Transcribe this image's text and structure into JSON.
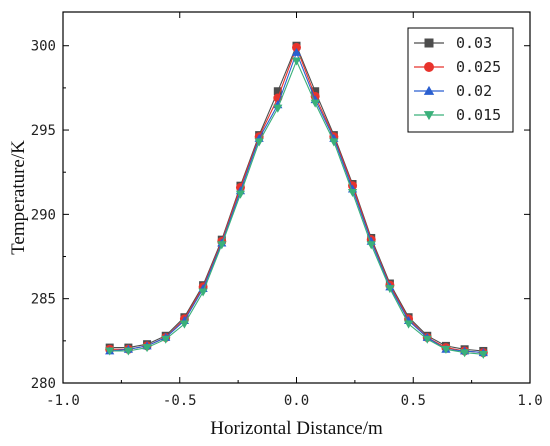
{
  "chart_data": {
    "type": "line",
    "xlabel": "Horizontal Distance/m",
    "ylabel": "Temperature/K",
    "xlim": [
      -1.0,
      1.0
    ],
    "ylim": [
      280,
      302
    ],
    "xticks": [
      -1.0,
      -0.5,
      0.0,
      0.5,
      1.0
    ],
    "xtick_labels": [
      "-1.0",
      "-0.5",
      "0.0",
      "0.5",
      "1.0"
    ],
    "yticks": [
      280,
      285,
      290,
      295,
      300
    ],
    "ytick_labels": [
      "280",
      "285",
      "290",
      "295",
      "300"
    ],
    "grid": false,
    "legend_position": "top-right",
    "x": [
      -0.8,
      -0.72,
      -0.64,
      -0.56,
      -0.48,
      -0.4,
      -0.32,
      -0.24,
      -0.16,
      -0.08,
      0.0,
      0.08,
      0.16,
      0.24,
      0.32,
      0.4,
      0.48,
      0.56,
      0.64,
      0.72,
      0.8
    ],
    "series": [
      {
        "name": "0.03",
        "color": "#4d4d4d",
        "marker": "square",
        "values": [
          282.1,
          282.1,
          282.3,
          282.8,
          283.9,
          285.8,
          288.5,
          291.7,
          294.7,
          297.3,
          300.0,
          297.3,
          294.7,
          291.8,
          288.6,
          285.9,
          283.9,
          282.8,
          282.2,
          282.0,
          281.9
        ]
      },
      {
        "name": "0.025",
        "color": "#e8332c",
        "marker": "circle",
        "values": [
          282.0,
          282.0,
          282.2,
          282.7,
          283.8,
          285.7,
          288.4,
          291.6,
          294.6,
          296.9,
          299.9,
          297.0,
          294.6,
          291.7,
          288.5,
          285.8,
          283.8,
          282.7,
          282.1,
          281.9,
          281.8
        ]
      },
      {
        "name": "0.02",
        "color": "#2a5fd0",
        "marker": "triangle-up",
        "values": [
          281.9,
          282.0,
          282.2,
          282.7,
          283.7,
          285.6,
          288.3,
          291.4,
          294.5,
          296.5,
          299.6,
          296.8,
          294.5,
          291.5,
          288.4,
          285.7,
          283.7,
          282.7,
          282.0,
          281.9,
          281.8
        ]
      },
      {
        "name": "0.015",
        "color": "#3ab07a",
        "marker": "triangle-down",
        "values": [
          281.9,
          281.9,
          282.1,
          282.6,
          283.5,
          285.4,
          288.2,
          291.2,
          294.3,
          296.3,
          299.1,
          296.6,
          294.3,
          291.3,
          288.2,
          285.6,
          283.5,
          282.6,
          282.0,
          281.8,
          281.7
        ]
      }
    ]
  }
}
